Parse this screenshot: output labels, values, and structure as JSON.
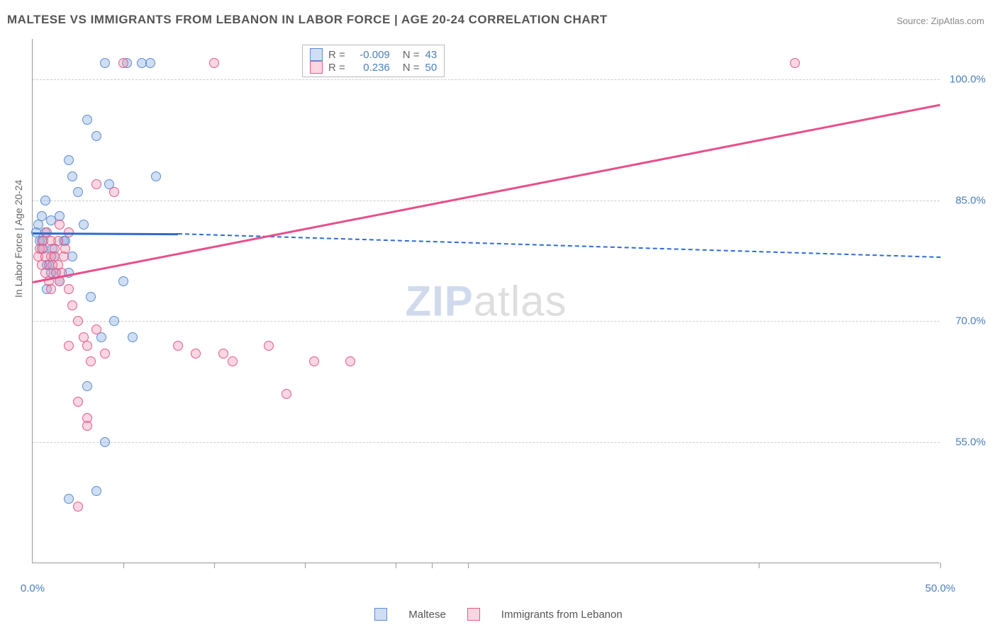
{
  "meta": {
    "title": "MALTESE VS IMMIGRANTS FROM LEBANON IN LABOR FORCE | AGE 20-24 CORRELATION CHART",
    "source": "Source: ZipAtlas.com",
    "watermark_zip": "ZIP",
    "watermark_atlas": "atlas"
  },
  "chart": {
    "type": "scatter",
    "y_axis_title": "In Labor Force | Age 20-24",
    "background_color": "#ffffff",
    "grid_color": "#cccccc",
    "axis_color": "#999999",
    "xlim": [
      0,
      50
    ],
    "ylim": [
      40,
      105
    ],
    "y_ticks": [
      {
        "value": 55.0,
        "label": "55.0%"
      },
      {
        "value": 70.0,
        "label": "70.0%"
      },
      {
        "value": 85.0,
        "label": "85.0%"
      },
      {
        "value": 100.0,
        "label": "100.0%"
      }
    ],
    "x_ticks": [
      {
        "value": 0.0,
        "label": "0.0%"
      },
      {
        "value": 50.0,
        "label": "50.0%"
      }
    ],
    "x_minor_ticks": [
      5,
      10,
      15,
      20,
      22,
      24,
      40,
      50
    ],
    "series": [
      {
        "name": "Maltese",
        "marker_color_fill": "rgba(120,160,220,0.35)",
        "marker_color_stroke": "#5a8cd0",
        "marker_size": 14,
        "trend_color": "#2e6bd0",
        "trend": {
          "x1": 0,
          "y1": 81,
          "x2": 8,
          "y2": 80.9,
          "x_dash_end": 50,
          "y_dash_end": 78
        },
        "r": "-0.009",
        "n": "43",
        "points": [
          [
            0.2,
            81
          ],
          [
            0.3,
            82
          ],
          [
            0.4,
            80
          ],
          [
            0.5,
            83
          ],
          [
            0.6,
            79
          ],
          [
            0.7,
            85
          ],
          [
            0.8,
            77
          ],
          [
            1.0,
            82.5
          ],
          [
            1.2,
            78
          ],
          [
            1.3,
            76
          ],
          [
            1.5,
            75
          ],
          [
            1.7,
            80
          ],
          [
            2.0,
            90
          ],
          [
            2.2,
            88
          ],
          [
            2.5,
            86
          ],
          [
            2.8,
            82
          ],
          [
            3.0,
            95
          ],
          [
            3.2,
            73
          ],
          [
            3.5,
            93
          ],
          [
            3.8,
            68
          ],
          [
            4.0,
            102
          ],
          [
            4.2,
            87
          ],
          [
            4.5,
            70
          ],
          [
            5.0,
            75
          ],
          [
            5.2,
            102
          ],
          [
            5.5,
            68
          ],
          [
            6.0,
            102
          ],
          [
            6.5,
            102
          ],
          [
            6.8,
            88
          ],
          [
            3.0,
            62
          ],
          [
            1.5,
            83
          ],
          [
            1.0,
            76
          ],
          [
            0.8,
            74
          ],
          [
            2.0,
            76
          ],
          [
            4.0,
            55
          ],
          [
            1.8,
            80
          ],
          [
            2.2,
            78
          ],
          [
            0.5,
            80
          ],
          [
            0.7,
            81
          ],
          [
            1.1,
            79
          ],
          [
            0.9,
            77
          ],
          [
            3.5,
            49
          ],
          [
            2.0,
            48
          ]
        ]
      },
      {
        "name": "Immigrants from Lebanon",
        "marker_color_fill": "rgba(240,140,170,0.35)",
        "marker_color_stroke": "#e05a8c",
        "marker_size": 14,
        "trend_color": "#e84e8a",
        "trend": {
          "x1": 0,
          "y1": 75,
          "x2": 50,
          "y2": 97,
          "x_dash_end": 50,
          "y_dash_end": 97
        },
        "r": "0.236",
        "n": "50",
        "points": [
          [
            0.3,
            78
          ],
          [
            0.4,
            79
          ],
          [
            0.5,
            77
          ],
          [
            0.6,
            80
          ],
          [
            0.7,
            76
          ],
          [
            0.8,
            81
          ],
          [
            0.9,
            75
          ],
          [
            1.0,
            78
          ],
          [
            1.1,
            77
          ],
          [
            1.2,
            79
          ],
          [
            1.3,
            76
          ],
          [
            1.4,
            80
          ],
          [
            1.5,
            75
          ],
          [
            1.7,
            78
          ],
          [
            2.0,
            74
          ],
          [
            2.2,
            72
          ],
          [
            2.5,
            70
          ],
          [
            2.8,
            68
          ],
          [
            3.0,
            67
          ],
          [
            3.2,
            65
          ],
          [
            3.5,
            69
          ],
          [
            4.0,
            66
          ],
          [
            4.5,
            86
          ],
          [
            5.0,
            102
          ],
          [
            2.0,
            81
          ],
          [
            2.5,
            60
          ],
          [
            3.0,
            58
          ],
          [
            1.5,
            82
          ],
          [
            1.8,
            79
          ],
          [
            0.5,
            79
          ],
          [
            0.7,
            78
          ],
          [
            1.0,
            80
          ],
          [
            1.2,
            78
          ],
          [
            1.4,
            77
          ],
          [
            1.6,
            76
          ],
          [
            8.0,
            67
          ],
          [
            9.0,
            66
          ],
          [
            10.0,
            102
          ],
          [
            10.5,
            66
          ],
          [
            11.0,
            65
          ],
          [
            13.0,
            67
          ],
          [
            14.0,
            61
          ],
          [
            15.5,
            65
          ],
          [
            17.5,
            65
          ],
          [
            2.5,
            47
          ],
          [
            3.0,
            57
          ],
          [
            2.0,
            67
          ],
          [
            3.5,
            87
          ],
          [
            1.0,
            74
          ],
          [
            42.0,
            102
          ]
        ]
      }
    ],
    "legend_top": {
      "r_label": "R =",
      "n_label": "N ="
    }
  }
}
